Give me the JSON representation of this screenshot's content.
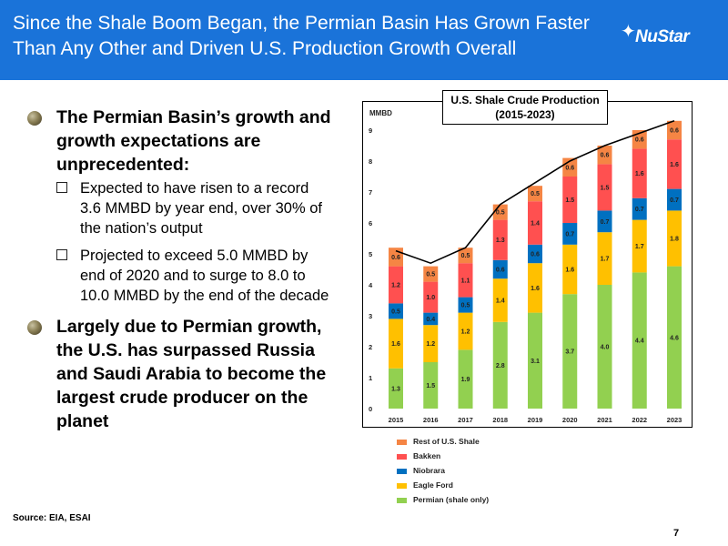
{
  "header": {
    "title": "Since the Shale Boom Began, the Permian Basin Has Grown Faster Than Any Other and Driven U.S. Production Growth Overall",
    "logo_text": "NuStar"
  },
  "bullets": {
    "main1": "The Permian Basin’s growth and growth expectations are unprecedented:",
    "sub1": "Expected to have risen to a record 3.6 MMBD by year end, over 30% of the nation’s output",
    "sub2": "Projected to exceed 5.0 MMBD by end of 2020 and to surge to 8.0 to 10.0 MMBD by the end of the decade",
    "main2": "Largely due to Permian growth, the U.S. has surpassed Russia and Saudi Arabia to become the largest crude producer on the planet"
  },
  "footer": {
    "source": "Source: EIA, ESAI",
    "page_number": "7"
  },
  "chart_data": {
    "type": "bar",
    "stacked": true,
    "title_line1": "U.S. Shale Crude Production",
    "title_line2": "(2015-2023)",
    "ylabel": "MMBD",
    "ylim": [
      0,
      9
    ],
    "yticks": [
      0,
      1,
      2,
      3,
      4,
      5,
      6,
      7,
      8,
      9
    ],
    "categories": [
      "2015",
      "2016",
      "2017",
      "2018",
      "2019",
      "2020",
      "2021",
      "2022",
      "2023"
    ],
    "series": [
      {
        "name": "Permian (shale only)",
        "color": "#92d050",
        "values": [
          1.3,
          1.5,
          1.9,
          2.8,
          3.1,
          3.7,
          4.0,
          4.4,
          4.6
        ]
      },
      {
        "name": "Eagle Ford",
        "color": "#ffc000",
        "values": [
          1.6,
          1.2,
          1.2,
          1.4,
          1.6,
          1.6,
          1.7,
          1.7,
          1.8
        ]
      },
      {
        "name": "Niobrara",
        "color": "#0070c0",
        "values": [
          0.5,
          0.4,
          0.5,
          0.6,
          0.6,
          0.7,
          0.7,
          0.7,
          0.7
        ]
      },
      {
        "name": "Bakken",
        "color": "#ff5050",
        "values": [
          1.2,
          1.0,
          1.1,
          1.3,
          1.4,
          1.5,
          1.5,
          1.6,
          1.6
        ]
      },
      {
        "name": "Rest of U.S. Shale",
        "color": "#f58544",
        "values": [
          0.6,
          0.5,
          0.5,
          0.5,
          0.5,
          0.6,
          0.6,
          0.6,
          0.6
        ]
      }
    ],
    "total_line": {
      "color": "#000000",
      "values": [
        5.1,
        4.7,
        5.2,
        6.6,
        7.3,
        8.0,
        8.5,
        8.9,
        9.3
      ]
    },
    "legend_order": [
      "Rest of U.S. Shale",
      "Bakken",
      "Niobrara",
      "Eagle Ford",
      "Permian (shale only)"
    ],
    "legend_position": "bottom-left",
    "grid": false
  }
}
